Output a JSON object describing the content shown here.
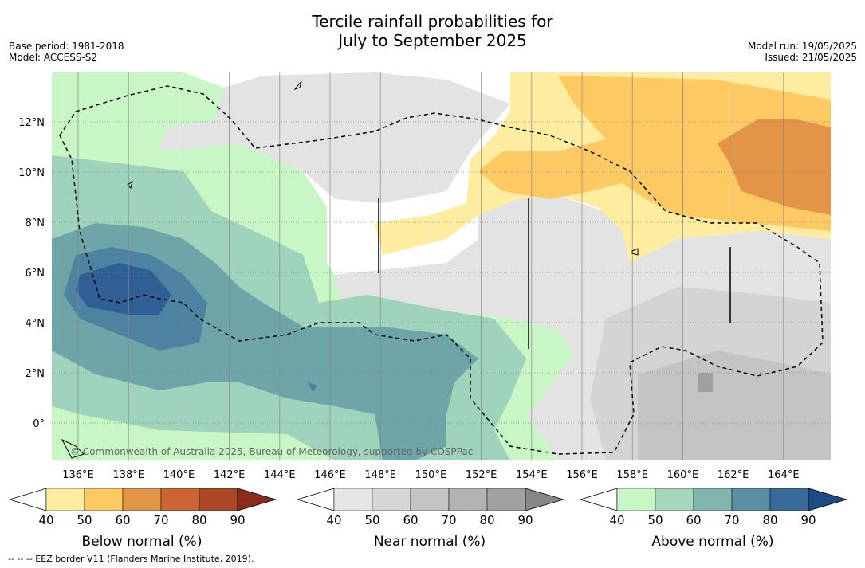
{
  "title_line1": "Tercile rainfall probabilities for",
  "title_line2": "July to September 2025",
  "base_period": "Base period: 1981-2018",
  "model": "Model: ACCESS-S2",
  "model_run": "Model run: 19/05/2025",
  "issued": "Issued: 21/05/2025",
  "copyright": "© Commonwealth of Australia 2025, Bureau of Meteorology, supported by COSPPac",
  "footnote": "-- -- -- EEZ border V11 (Flanders Marine Institute, 2019).",
  "x_ticks": [
    "136°E",
    "138°E",
    "140°E",
    "142°E",
    "144°E",
    "146°E",
    "148°E",
    "150°E",
    "152°E",
    "154°E",
    "156°E",
    "158°E",
    "160°E",
    "162°E",
    "164°E"
  ],
  "y_ticks": [
    "12°N",
    "10°N",
    "8°N",
    "6°N",
    "4°N",
    "2°N",
    "0°"
  ],
  "colorbars": [
    {
      "label": "Below normal (%)",
      "ticks": [
        "40",
        "50",
        "60",
        "70",
        "80",
        "90"
      ],
      "colors": [
        "#ffffff",
        "#feeca0",
        "#fdc962",
        "#e39447",
        "#cd6434",
        "#ad4726",
        "#8c2a1c"
      ]
    },
    {
      "label": "Near normal (%)",
      "ticks": [
        "40",
        "50",
        "60",
        "70",
        "80",
        "90"
      ],
      "colors": [
        "#ffffff",
        "#e6e6e6",
        "#d6d6d6",
        "#c4c4c4",
        "#b3b3b3",
        "#a1a1a1",
        "#878787"
      ]
    },
    {
      "label": "Above normal (%)",
      "ticks": [
        "40",
        "50",
        "60",
        "70",
        "80",
        "90"
      ],
      "colors": [
        "#ffffff",
        "#c8f7c5",
        "#a5d7bc",
        "#7fb6ae",
        "#5b8fa3",
        "#386a9a",
        "#1b4c86"
      ]
    }
  ],
  "colors": {
    "white": "#ffffff",
    "near40": "#e3e3e3",
    "near50": "#d4d4d4",
    "near60": "#c4c4c4",
    "near80": "#a0a0a0",
    "below40": "#feeca0",
    "below50": "#fdc962",
    "below60": "#e39447",
    "above40": "#c8f7c5",
    "above50": "#9fd3bb",
    "above60": "#6ea5a8",
    "above70": "#4d82a0",
    "above80": "#2f5f94"
  }
}
